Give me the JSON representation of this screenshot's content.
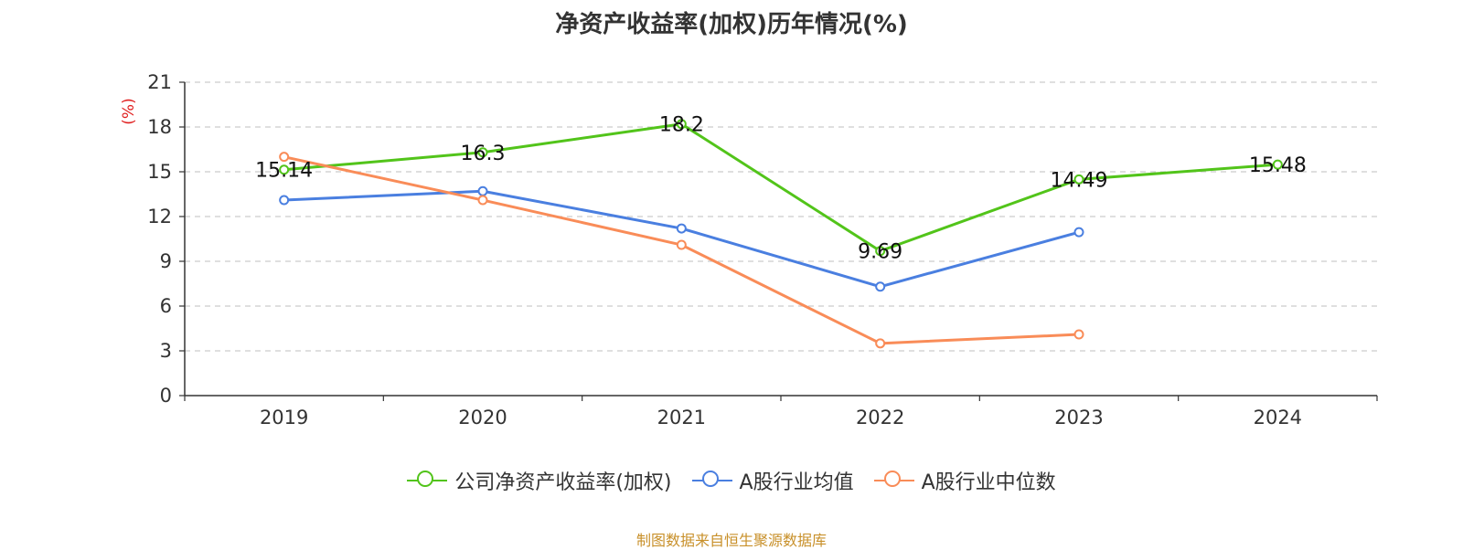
{
  "chart_data": {
    "type": "line",
    "title": "净资产收益率(加权)历年情况(%)",
    "ylabel": "(%)",
    "xlabel": "",
    "categories": [
      "2019",
      "2020",
      "2021",
      "2022",
      "2023",
      "2024"
    ],
    "ylim": [
      0,
      21
    ],
    "yticks": [
      0,
      3,
      6,
      9,
      12,
      15,
      18,
      21
    ],
    "grid": true,
    "legend_position": "bottom",
    "series": [
      {
        "name": "公司净资产收益率(加权)",
        "color": "#52c41a",
        "values": [
          15.14,
          16.3,
          18.2,
          9.69,
          14.49,
          15.48
        ],
        "labels": [
          "15.14",
          "16.3",
          "18.2",
          "9.69",
          "14.49",
          "15.48"
        ]
      },
      {
        "name": "A股行业均值",
        "color": "#4a7fe0",
        "values": [
          13.1,
          13.7,
          11.2,
          7.3,
          10.95,
          null
        ],
        "labels": []
      },
      {
        "name": "A股行业中位数",
        "color": "#f98c58",
        "values": [
          16.0,
          13.1,
          10.1,
          3.5,
          4.1,
          null
        ],
        "labels": []
      }
    ]
  },
  "source": "制图数据来自恒生聚源数据库"
}
